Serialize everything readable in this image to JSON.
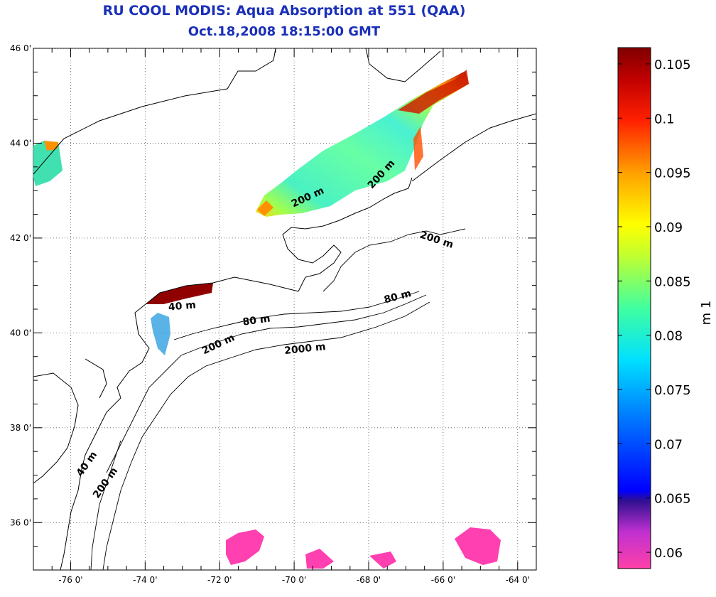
{
  "title": {
    "line1": "RU COOL MODIS: Aqua Absorption at 551 (QAA)",
    "line2": "Oct.18,2008 18:15:00 GMT"
  },
  "map": {
    "lon_range": [
      -77,
      -63.5
    ],
    "lat_range": [
      35,
      46
    ],
    "x_ticks": [
      -76,
      -74,
      -72,
      -70,
      -68,
      -66,
      -64
    ],
    "x_tick_labels": [
      "-76 0'",
      "-74 0'",
      "-72 0'",
      "-70 0'",
      "-68 0'",
      "-66 0'",
      "-64 0'"
    ],
    "y_ticks": [
      46,
      44,
      42,
      40,
      38,
      36
    ],
    "y_tick_labels": [
      "46 0'",
      "44 0'",
      "42 0'",
      "40 0'",
      "38 0'",
      "36 0'"
    ],
    "grid": "dotted",
    "contour_labels": [
      {
        "text": "200 m",
        "lon": -67.6,
        "lat": 43.3,
        "angle": -48
      },
      {
        "text": "200 m",
        "lon": -69.6,
        "lat": 42.8,
        "angle": -25
      },
      {
        "text": "200 m",
        "lon": -66.2,
        "lat": 41.9,
        "angle": 18
      },
      {
        "text": "80 m",
        "lon": -67.2,
        "lat": 40.7,
        "angle": -15
      },
      {
        "text": "40 m",
        "lon": -73.0,
        "lat": 40.5,
        "angle": -5
      },
      {
        "text": "80 m",
        "lon": -71.0,
        "lat": 40.2,
        "angle": -8
      },
      {
        "text": "200 m",
        "lon": -72.0,
        "lat": 39.7,
        "angle": -25
      },
      {
        "text": "2000 m",
        "lon": -69.7,
        "lat": 39.6,
        "angle": -6
      },
      {
        "text": "40 m",
        "lon": -75.5,
        "lat": 37.2,
        "angle": -55
      },
      {
        "text": "200 m",
        "lon": -75.0,
        "lat": 36.8,
        "angle": -55
      }
    ]
  },
  "colorbar": {
    "min": 0.0585,
    "max": 0.1065,
    "ticks": [
      0.105,
      0.1,
      0.095,
      0.09,
      0.085,
      0.08,
      0.075,
      0.07,
      0.065,
      0.06
    ],
    "tick_labels": [
      "0.105",
      "0.1",
      "0.095",
      "0.09",
      "0.085",
      "0.08",
      "0.075",
      "0.07",
      "0.065",
      "0.06"
    ],
    "unit_label": "m 1",
    "colors": [
      "#ff40a8",
      "#b030d0",
      "#2020a0",
      "#0000ff",
      "#0080ff",
      "#00e0ff",
      "#40ffa0",
      "#c0ff30",
      "#ffff00",
      "#ffa000",
      "#ff2000",
      "#c00000",
      "#800000"
    ]
  }
}
